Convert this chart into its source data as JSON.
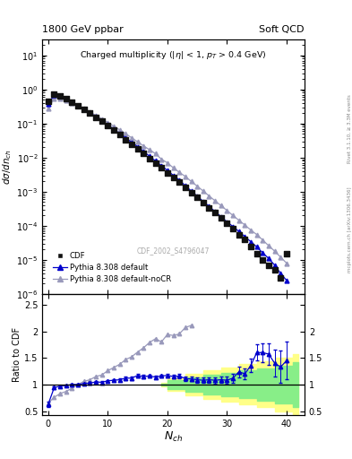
{
  "title_left": "1800 GeV ppbar",
  "title_right": "Soft QCD",
  "panel_title": "Charged multiplicity (|η| < 1, p_{T} > 0.4 GeV)",
  "xlabel": "N_{ch}",
  "ylabel_main": "dσ/dn_{ch}",
  "ylabel_ratio": "Ratio to CDF",
  "right_label1": "Rivet 3.1.10, ≥ 3.3M events",
  "right_label2": "mcplots.cern.ch [arXiv:1306.3436]",
  "watermark": "CDF_2002_S4796047",
  "xlim": [
    -1,
    43
  ],
  "ylim_main": [
    1e-06,
    30
  ],
  "ylim_ratio": [
    0.42,
    2.7
  ],
  "cdf_x": [
    0,
    1,
    2,
    3,
    4,
    5,
    6,
    7,
    8,
    9,
    10,
    11,
    12,
    13,
    14,
    15,
    16,
    17,
    18,
    19,
    20,
    21,
    22,
    23,
    24,
    25,
    26,
    27,
    28,
    29,
    30,
    31,
    32,
    33,
    34,
    35,
    36,
    37,
    38,
    39,
    40
  ],
  "cdf_y": [
    0.45,
    0.72,
    0.65,
    0.55,
    0.43,
    0.34,
    0.26,
    0.2,
    0.15,
    0.115,
    0.085,
    0.063,
    0.047,
    0.034,
    0.025,
    0.018,
    0.013,
    0.0095,
    0.007,
    0.005,
    0.0036,
    0.0026,
    0.0019,
    0.00135,
    0.00095,
    0.00068,
    0.00048,
    0.00034,
    0.00024,
    0.00017,
    0.00012,
    8.5e-05,
    5.5e-05,
    4e-05,
    2.5e-05,
    1.5e-05,
    1e-05,
    7e-06,
    5e-06,
    3e-06,
    1.5e-05
  ],
  "pythia_default_x": [
    0,
    1,
    2,
    3,
    4,
    5,
    6,
    7,
    8,
    9,
    10,
    11,
    12,
    13,
    14,
    15,
    16,
    17,
    18,
    19,
    20,
    21,
    22,
    23,
    24,
    25,
    26,
    27,
    28,
    29,
    30,
    31,
    32,
    33,
    34,
    35,
    36,
    37,
    38,
    39,
    40
  ],
  "pythia_default_y": [
    0.38,
    0.68,
    0.63,
    0.54,
    0.43,
    0.34,
    0.265,
    0.205,
    0.158,
    0.12,
    0.091,
    0.068,
    0.051,
    0.038,
    0.028,
    0.021,
    0.015,
    0.011,
    0.008,
    0.0058,
    0.0042,
    0.003,
    0.0022,
    0.0015,
    0.00105,
    0.00074,
    0.00052,
    0.00037,
    0.00026,
    0.000185,
    0.00013,
    9.5e-05,
    6.8e-05,
    4.8e-05,
    3.4e-05,
    2.4e-05,
    1.6e-05,
    1.1e-05,
    7e-06,
    4e-06,
    2.5e-06
  ],
  "pythia_nocr_x": [
    0,
    1,
    2,
    3,
    4,
    5,
    6,
    7,
    8,
    9,
    10,
    11,
    12,
    13,
    14,
    15,
    16,
    17,
    18,
    19,
    20,
    21,
    22,
    23,
    24,
    25,
    26,
    27,
    28,
    29,
    30,
    31,
    32,
    33,
    34,
    35,
    36,
    37,
    38,
    39,
    40
  ],
  "pythia_nocr_y": [
    0.28,
    0.55,
    0.54,
    0.48,
    0.4,
    0.34,
    0.275,
    0.218,
    0.172,
    0.136,
    0.107,
    0.083,
    0.065,
    0.05,
    0.038,
    0.029,
    0.022,
    0.017,
    0.013,
    0.009,
    0.007,
    0.005,
    0.0037,
    0.0028,
    0.002,
    0.00145,
    0.00105,
    0.00075,
    0.00054,
    0.00039,
    0.00028,
    0.0002,
    0.000145,
    0.000105,
    7.5e-05,
    5.5e-05,
    3.8e-05,
    2.6e-05,
    1.8e-05,
    1.2e-05,
    8e-06
  ],
  "ratio_default_x": [
    0,
    1,
    2,
    3,
    4,
    5,
    6,
    7,
    8,
    9,
    10,
    11,
    12,
    13,
    14,
    15,
    16,
    17,
    18,
    19,
    20,
    21,
    22,
    23,
    24,
    25,
    26,
    27,
    28,
    29,
    30,
    31,
    32,
    33,
    34,
    35,
    36,
    37,
    38,
    39,
    40
  ],
  "ratio_default_y": [
    0.63,
    0.94,
    0.97,
    0.98,
    1.0,
    1.0,
    1.02,
    1.025,
    1.05,
    1.04,
    1.07,
    1.08,
    1.09,
    1.12,
    1.12,
    1.17,
    1.15,
    1.16,
    1.14,
    1.16,
    1.17,
    1.15,
    1.16,
    1.11,
    1.105,
    1.09,
    1.08,
    1.09,
    1.08,
    1.09,
    1.08,
    1.12,
    1.24,
    1.2,
    1.36,
    1.6,
    1.6,
    1.57,
    1.4,
    1.33,
    1.45
  ],
  "ratio_default_err": [
    0.05,
    0.03,
    0.02,
    0.02,
    0.02,
    0.02,
    0.02,
    0.02,
    0.02,
    0.02,
    0.02,
    0.02,
    0.02,
    0.03,
    0.03,
    0.03,
    0.03,
    0.03,
    0.03,
    0.03,
    0.03,
    0.03,
    0.04,
    0.04,
    0.04,
    0.05,
    0.05,
    0.05,
    0.06,
    0.06,
    0.07,
    0.08,
    0.1,
    0.1,
    0.12,
    0.15,
    0.18,
    0.2,
    0.25,
    0.3,
    0.35
  ],
  "ratio_nocr_x": [
    0,
    1,
    2,
    3,
    4,
    5,
    6,
    7,
    8,
    9,
    10,
    11,
    12,
    13,
    14,
    15,
    16,
    17,
    18,
    19,
    20,
    21,
    22,
    23,
    24
  ],
  "ratio_nocr_y": [
    0.65,
    0.76,
    0.83,
    0.87,
    0.93,
    1.0,
    1.06,
    1.09,
    1.15,
    1.18,
    1.26,
    1.32,
    1.38,
    1.47,
    1.52,
    1.61,
    1.69,
    1.79,
    1.86,
    1.8,
    1.94,
    1.92,
    1.95,
    2.07,
    2.11
  ],
  "yband_x": [
    19,
    20,
    23,
    26,
    29,
    32,
    35,
    38,
    41,
    42
  ],
  "yband_lo": [
    0.97,
    0.88,
    0.8,
    0.73,
    0.68,
    0.62,
    0.57,
    0.5,
    0.43,
    0.43
  ],
  "yband_hi": [
    1.03,
    1.12,
    1.2,
    1.27,
    1.32,
    1.38,
    1.43,
    1.5,
    1.57,
    1.57
  ],
  "gband_x": [
    19,
    20,
    23,
    26,
    29,
    32,
    35,
    38,
    41,
    42
  ],
  "gband_lo": [
    0.985,
    0.92,
    0.86,
    0.82,
    0.78,
    0.74,
    0.7,
    0.65,
    0.58,
    0.58
  ],
  "gband_hi": [
    1.015,
    1.08,
    1.14,
    1.18,
    1.22,
    1.26,
    1.3,
    1.35,
    1.42,
    1.42
  ],
  "color_cdf": "#111111",
  "color_default": "#0000cc",
  "color_nocr": "#9999bb",
  "color_yellow": "#ffff88",
  "color_green": "#88ee88"
}
